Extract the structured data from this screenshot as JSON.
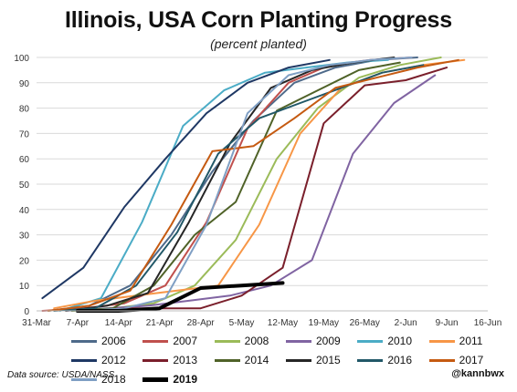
{
  "chart_data": {
    "type": "line",
    "title": "Illinois, USA Corn Planting Progress",
    "subtitle": "(percent planted)",
    "xlabel": "",
    "ylabel": "",
    "ylim": [
      0,
      100
    ],
    "y_ticks": [
      0,
      10,
      20,
      30,
      40,
      50,
      60,
      70,
      80,
      90,
      100
    ],
    "x_ticks": [
      "31-Mar",
      "7-Apr",
      "14-Apr",
      "21-Apr",
      "28-Apr",
      "5-May",
      "12-May",
      "19-May",
      "26-May",
      "2-Jun",
      "9-Jun",
      "16-Jun"
    ],
    "grid": "horizontal",
    "legend_position": "bottom",
    "series": [
      {
        "name": "2006",
        "color": "#4e6a8a",
        "width": 2,
        "x": [
          "2006-04-02",
          "2006-04-09",
          "2006-04-16",
          "2006-04-23",
          "2006-04-30",
          "2006-05-07",
          "2006-05-14",
          "2006-05-21",
          "2006-05-28",
          "2006-06-04"
        ],
        "y": [
          0,
          2,
          10,
          30,
          55,
          75,
          90,
          96,
          99,
          100
        ]
      },
      {
        "name": "2007",
        "color": "#c0504d",
        "width": 2,
        "x": [
          "2007-04-01",
          "2007-04-08",
          "2007-04-15",
          "2007-04-22",
          "2007-04-29",
          "2007-05-06",
          "2007-05-13",
          "2007-05-20",
          "2007-05-27",
          "2007-06-03"
        ],
        "y": [
          0,
          1,
          3,
          10,
          35,
          72,
          90,
          97,
          99,
          100
        ]
      },
      {
        "name": "2008",
        "color": "#9bbb59",
        "width": 2,
        "x": [
          "2008-04-06",
          "2008-04-13",
          "2008-04-20",
          "2008-04-27",
          "2008-05-04",
          "2008-05-11",
          "2008-05-18",
          "2008-05-25",
          "2008-06-01",
          "2008-06-08"
        ],
        "y": [
          0,
          1,
          3,
          10,
          28,
          60,
          80,
          92,
          97,
          100
        ]
      },
      {
        "name": "2009",
        "color": "#8064a2",
        "width": 2,
        "x": [
          "2009-04-05",
          "2009-04-12",
          "2009-04-19",
          "2009-04-26",
          "2009-05-03",
          "2009-05-10",
          "2009-05-17",
          "2009-05-24",
          "2009-05-31",
          "2009-06-07"
        ],
        "y": [
          0,
          1,
          2,
          4,
          6,
          10,
          20,
          62,
          82,
          93
        ]
      },
      {
        "name": "2010",
        "color": "#4bacc6",
        "width": 2,
        "x": [
          "2010-04-04",
          "2010-04-11",
          "2010-04-18",
          "2010-04-25",
          "2010-05-02",
          "2010-05-09",
          "2010-05-16",
          "2010-05-23",
          "2010-05-30"
        ],
        "y": [
          0,
          5,
          35,
          73,
          87,
          94,
          96,
          98,
          99
        ]
      },
      {
        "name": "2011",
        "color": "#f79646",
        "width": 2,
        "x": [
          "2011-04-03",
          "2011-04-10",
          "2011-04-17",
          "2011-04-24",
          "2011-05-01",
          "2011-05-08",
          "2011-05-15",
          "2011-05-22",
          "2011-05-29",
          "2011-06-05",
          "2011-06-12"
        ],
        "y": [
          1,
          4,
          6,
          8,
          10,
          34,
          70,
          88,
          94,
          97,
          99
        ]
      },
      {
        "name": "2012",
        "color": "#1f3864",
        "width": 2,
        "x": [
          "2012-04-01",
          "2012-04-08",
          "2012-04-15",
          "2012-04-22",
          "2012-04-29",
          "2012-05-06",
          "2012-05-13",
          "2012-05-20"
        ],
        "y": [
          5,
          17,
          41,
          60,
          78,
          90,
          96,
          99
        ]
      },
      {
        "name": "2013",
        "color": "#7a1f2b",
        "width": 2,
        "x": [
          "2013-04-07",
          "2013-04-14",
          "2013-04-21",
          "2013-04-28",
          "2013-05-05",
          "2013-05-12",
          "2013-05-19",
          "2013-05-26",
          "2013-06-02",
          "2013-06-09"
        ],
        "y": [
          0,
          1,
          1,
          1,
          6,
          17,
          74,
          89,
          91,
          96
        ]
      },
      {
        "name": "2014",
        "color": "#4f6228",
        "width": 2,
        "x": [
          "2014-04-06",
          "2014-04-13",
          "2014-04-20",
          "2014-04-27",
          "2014-05-04",
          "2014-05-11",
          "2014-05-18",
          "2014-05-25",
          "2014-06-01"
        ],
        "y": [
          0,
          1,
          10,
          30,
          43,
          79,
          87,
          95,
          98
        ]
      },
      {
        "name": "2015",
        "color": "#262626",
        "width": 2,
        "x": [
          "2015-04-05",
          "2015-04-12",
          "2015-04-19",
          "2015-04-26",
          "2015-05-03",
          "2015-05-10",
          "2015-05-17",
          "2015-05-24",
          "2015-05-31"
        ],
        "y": [
          0,
          2,
          7,
          35,
          66,
          88,
          95,
          98,
          100
        ]
      },
      {
        "name": "2016",
        "color": "#215868",
        "width": 2,
        "x": [
          "2016-04-03",
          "2016-04-10",
          "2016-04-17",
          "2016-04-24",
          "2016-05-01",
          "2016-05-08",
          "2016-05-15",
          "2016-05-22",
          "2016-05-29",
          "2016-06-05"
        ],
        "y": [
          0,
          1,
          10,
          31,
          62,
          76,
          82,
          88,
          94,
          97
        ]
      },
      {
        "name": "2017",
        "color": "#c55a11",
        "width": 2,
        "x": [
          "2017-04-02",
          "2017-04-09",
          "2017-04-16",
          "2017-04-23",
          "2017-04-30",
          "2017-05-07",
          "2017-05-14",
          "2017-05-21",
          "2017-05-28",
          "2017-06-04",
          "2017-06-11"
        ],
        "y": [
          0,
          2,
          8,
          34,
          63,
          65,
          76,
          88,
          92,
          96,
          99
        ]
      },
      {
        "name": "2018",
        "color": "#7f9fc4",
        "width": 2,
        "x": [
          "2018-04-08",
          "2018-04-15",
          "2018-04-22",
          "2018-04-29",
          "2018-05-06",
          "2018-05-13",
          "2018-05-20",
          "2018-05-27",
          "2018-06-03"
        ],
        "y": [
          0,
          1,
          5,
          34,
          78,
          93,
          97,
          99,
          100
        ]
      },
      {
        "name": "2019",
        "color": "#000000",
        "width": 4,
        "x": [
          "2019-04-07",
          "2019-04-14",
          "2019-04-21",
          "2019-04-28",
          "2019-05-05",
          "2019-05-12"
        ],
        "y": [
          0,
          0,
          1,
          9,
          10,
          11
        ]
      }
    ]
  },
  "footer": {
    "source": "Data source: USDA/NASS",
    "handle": "@kannbwx"
  }
}
